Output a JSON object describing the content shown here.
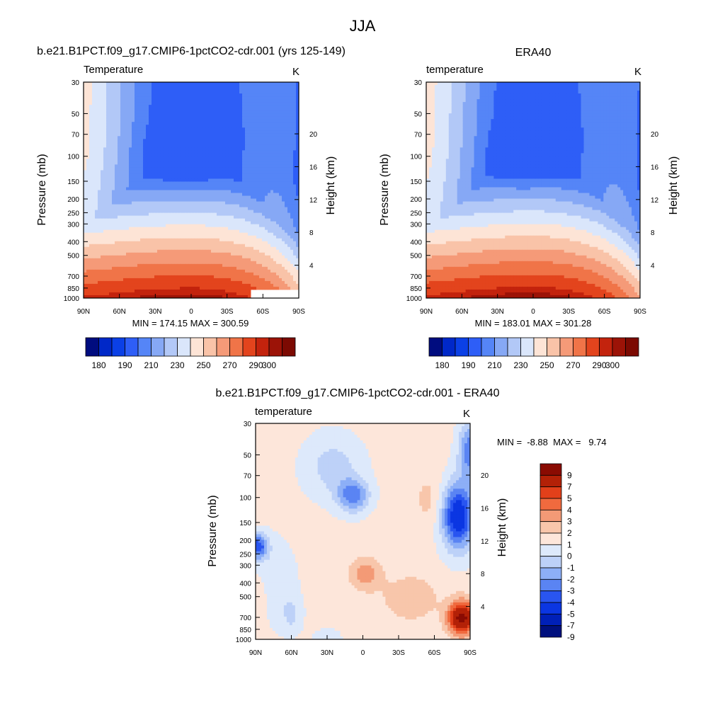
{
  "figure": {
    "title": "JJA"
  },
  "colors": {
    "temperature_palette": [
      "#000c7f",
      "#0028c8",
      "#0b40e6",
      "#2e5ef7",
      "#5585f7",
      "#86a8f5",
      "#b2c8f7",
      "#dae6fb",
      "#fde4d6",
      "#f9c3a8",
      "#f59a78",
      "#f07448",
      "#e3441d",
      "#c3230d",
      "#9c1307",
      "#7c0a02"
    ],
    "difference_palette": [
      "#00107e",
      "#0020b8",
      "#0b36e2",
      "#2955f0",
      "#5a84f3",
      "#8daff7",
      "#bdd1f8",
      "#dde9fb",
      "#fde6da",
      "#f8c6ab",
      "#f39a76",
      "#f06a3e",
      "#e2401a",
      "#b32107",
      "#8a0b02"
    ]
  },
  "panels": {
    "model": {
      "heading": "b.e21.B1PCT.f09_g17.CMIP6-1pctCO2-cdr.001 (yrs 125-149)",
      "variable_label": "Temperature",
      "units": "K",
      "minmax_label": "MIN = 174.15  MAX = 300.59"
    },
    "era40": {
      "heading": "ERA40",
      "variable_label": "temperature",
      "units": "K",
      "minmax_label": "MIN = 183.01  MAX = 301.28"
    },
    "difference": {
      "heading": "b.e21.B1PCT.f09_g17.CMIP6-1pctCO2-cdr.001 - ERA40",
      "variable_label": "temperature",
      "units": "K",
      "minmax_label": "MIN =  -8.88  MAX =   9.74"
    }
  },
  "axes": {
    "y_left_label": "Pressure (mb)",
    "y_right_label": "Height (km)",
    "pressure_ticks": [
      "30",
      "50",
      "70",
      "100",
      "150",
      "200",
      "250",
      "300",
      "400",
      "500",
      "700",
      "850",
      "1000"
    ],
    "height_ticks": [
      "20",
      "16",
      "12",
      "8",
      "4"
    ],
    "lat_ticks": [
      "90N",
      "60N",
      "30N",
      "0",
      "30S",
      "60S",
      "90S"
    ]
  },
  "colorbars": {
    "temperature_labels": [
      "180",
      "190",
      "210",
      "230",
      "250",
      "270",
      "290",
      "300"
    ],
    "difference_labels": [
      "9",
      "7",
      "5",
      "4",
      "3",
      "2",
      "1",
      "0",
      "-1",
      "-2",
      "-3",
      "-4",
      "-5",
      "-7",
      "-9"
    ]
  },
  "chart_data": [
    {
      "type": "heatmap",
      "subtype": "filled-contour (latitude-pressure cross section)",
      "title": "b.e21.B1PCT.f09_g17.CMIP6-1pctCO2-cdr.001 (yrs 125-149)",
      "variable": "Temperature",
      "units": "K",
      "x": [
        "90N",
        "60N",
        "30N",
        "0",
        "30S",
        "60S",
        "90S"
      ],
      "xlim": [
        90,
        -90
      ],
      "y_pressure_mb": [
        30,
        50,
        70,
        100,
        150,
        200,
        250,
        300,
        400,
        500,
        700,
        850,
        1000
      ],
      "ylim": [
        1000,
        30
      ],
      "y2_height_km": [
        4,
        8,
        12,
        16,
        20
      ],
      "contour_levels": [
        180,
        185,
        190,
        200,
        210,
        220,
        230,
        240,
        250,
        260,
        270,
        280,
        290,
        295,
        300
      ],
      "min": 174.15,
      "max": 300.59
    },
    {
      "type": "heatmap",
      "subtype": "filled-contour (latitude-pressure cross section)",
      "title": "ERA40",
      "variable": "temperature",
      "units": "K",
      "x": [
        "90N",
        "60N",
        "30N",
        "0",
        "30S",
        "60S",
        "90S"
      ],
      "xlim": [
        90,
        -90
      ],
      "y_pressure_mb": [
        30,
        50,
        70,
        100,
        150,
        200,
        250,
        300,
        400,
        500,
        700,
        850,
        1000
      ],
      "ylim": [
        1000,
        30
      ],
      "y2_height_km": [
        4,
        8,
        12,
        16,
        20
      ],
      "contour_levels": [
        180,
        185,
        190,
        200,
        210,
        220,
        230,
        240,
        250,
        260,
        270,
        280,
        290,
        295,
        300
      ],
      "min": 183.01,
      "max": 301.28
    },
    {
      "type": "heatmap",
      "subtype": "filled-contour difference",
      "title": "b.e21.B1PCT.f09_g17.CMIP6-1pctCO2-cdr.001 - ERA40",
      "variable": "temperature",
      "units": "K",
      "x": [
        "90N",
        "60N",
        "30N",
        "0",
        "30S",
        "60S",
        "90S"
      ],
      "xlim": [
        90,
        -90
      ],
      "y_pressure_mb": [
        30,
        50,
        70,
        100,
        150,
        200,
        250,
        300,
        400,
        500,
        700,
        850,
        1000
      ],
      "ylim": [
        1000,
        30
      ],
      "y2_height_km": [
        4,
        8,
        12,
        16,
        20
      ],
      "contour_levels": [
        -9,
        -7,
        -5,
        -4,
        -3,
        -2,
        -1,
        0,
        1,
        2,
        3,
        4,
        5,
        7,
        9
      ],
      "min": -8.88,
      "max": 9.74
    }
  ]
}
